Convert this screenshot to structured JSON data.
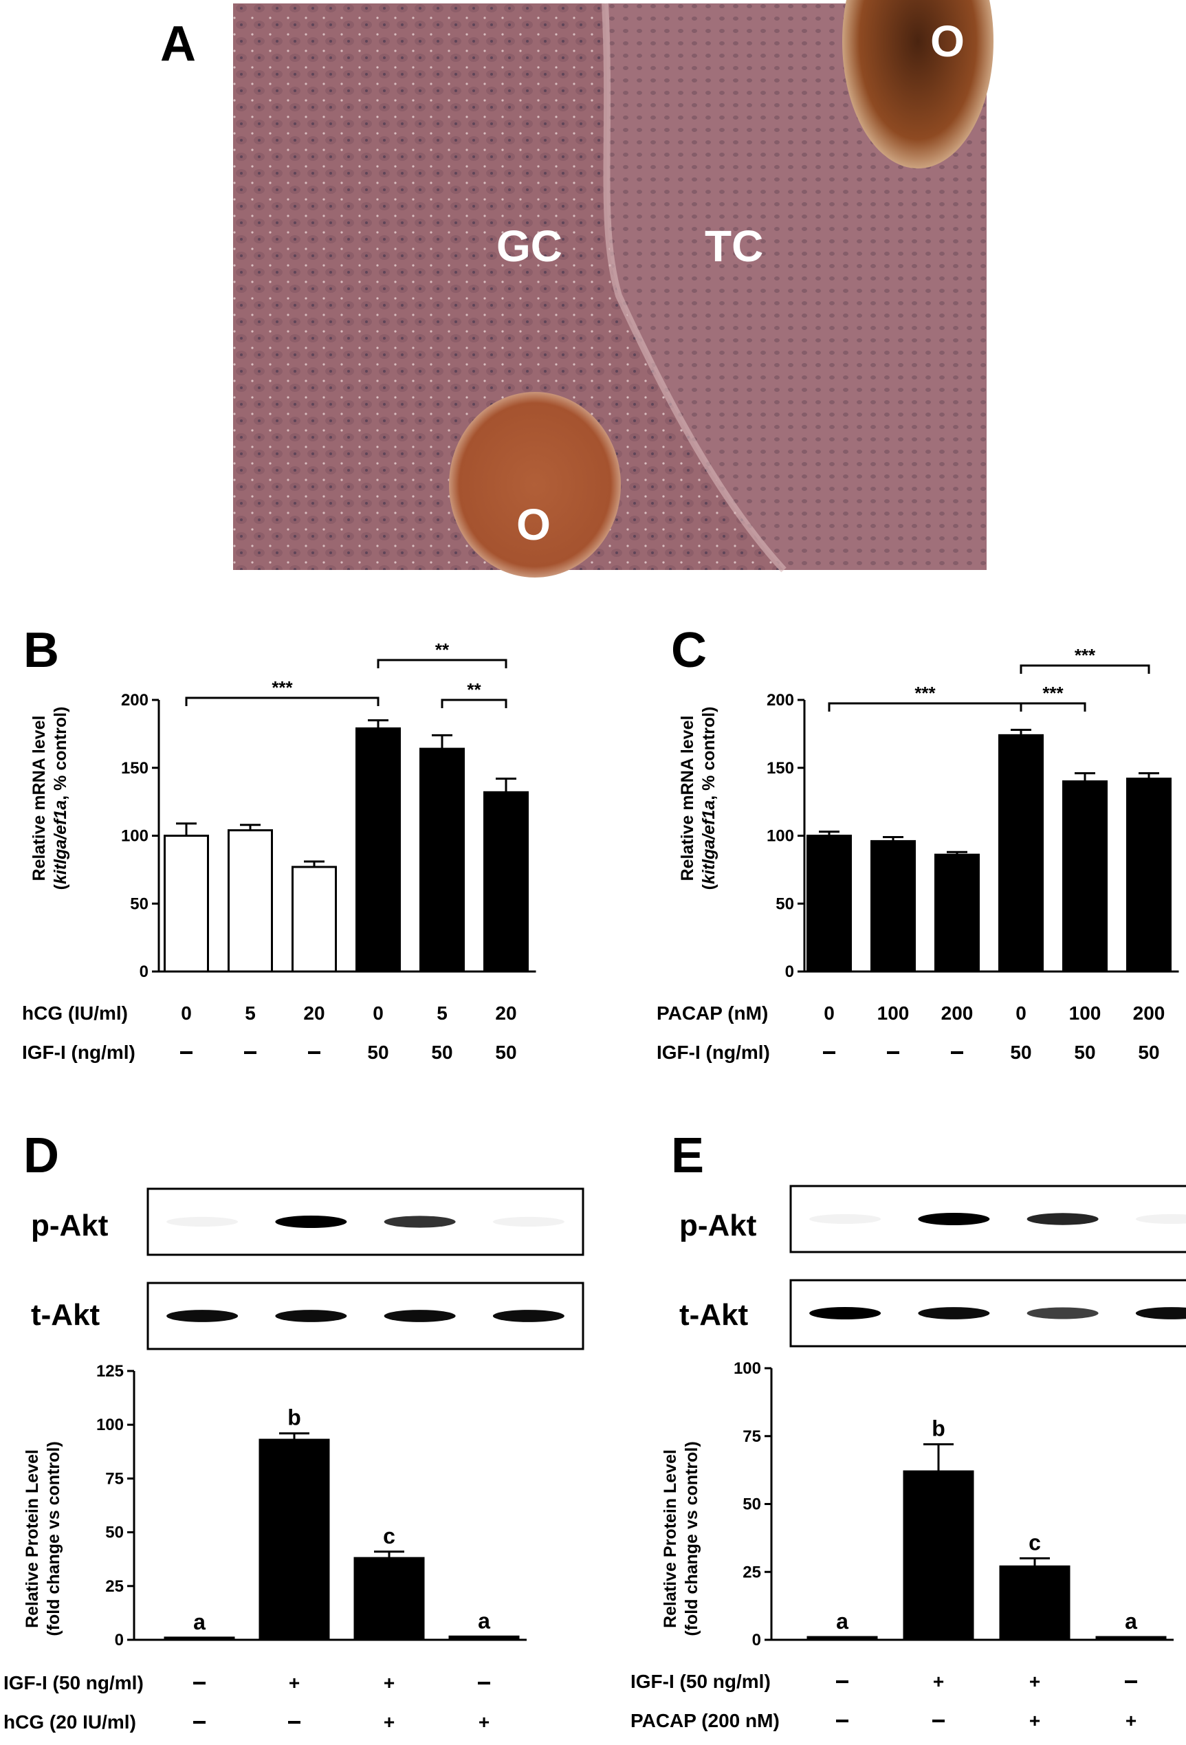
{
  "colors": {
    "black": "#000000",
    "white": "#ffffff",
    "micrograph_bg": "#9e6c74",
    "oocyte": "#a5532f"
  },
  "panel_letters": [
    "A",
    "B",
    "C",
    "D",
    "E"
  ],
  "micrograph": {
    "labels": [
      "GC",
      "TC",
      "O",
      "O"
    ]
  },
  "chart_data": [
    {
      "panel": "B",
      "type": "bar",
      "ylabel_line1": "Relative mRNA level",
      "ylabel_line2_italic": "kitlga/ef1a",
      "ylabel_line2_rest": ", % control)",
      "ylabel_line2_open": "(",
      "ylim": [
        0,
        200
      ],
      "yticks": [
        "0",
        "50",
        "100",
        "150",
        "200"
      ],
      "values": [
        100,
        104,
        77,
        179,
        164,
        132
      ],
      "errors": [
        9,
        4,
        4,
        6,
        10,
        10
      ],
      "fills": [
        "white",
        "white",
        "white",
        "black",
        "black",
        "black"
      ],
      "rows": [
        {
          "label": "hCG (IU/ml)",
          "values": [
            "0",
            "5",
            "20",
            "0",
            "5",
            "20"
          ]
        },
        {
          "label": "IGF-I (ng/ml)",
          "values": [
            "-",
            "-",
            "-",
            "50",
            "50",
            "50"
          ]
        }
      ],
      "brackets": [
        {
          "from": 0,
          "to": 3,
          "label": "***"
        },
        {
          "from": 3,
          "to": 5,
          "label": "**"
        },
        {
          "from": 4,
          "to": 5,
          "label": "**"
        }
      ]
    },
    {
      "panel": "C",
      "type": "bar",
      "ylabel_line1": "Relative mRNA level",
      "ylabel_line2_italic": "kitlga/ef1a",
      "ylabel_line2_rest": ", % control)",
      "ylabel_line2_open": "(",
      "ylim": [
        0,
        200
      ],
      "yticks": [
        "0",
        "50",
        "100",
        "150",
        "200"
      ],
      "values": [
        100,
        96,
        86,
        174,
        140,
        142
      ],
      "errors": [
        3,
        3,
        2,
        4,
        6,
        4
      ],
      "fills": [
        "black",
        "black",
        "black",
        "black",
        "black",
        "black"
      ],
      "rows": [
        {
          "label": "PACAP (nM)",
          "values": [
            "0",
            "100",
            "200",
            "0",
            "100",
            "200"
          ]
        },
        {
          "label": "IGF-I (ng/ml)",
          "values": [
            "-",
            "-",
            "-",
            "50",
            "50",
            "50"
          ]
        }
      ],
      "brackets": [
        {
          "from": 0,
          "to": 3,
          "label": "***"
        },
        {
          "from": 3,
          "to": 4,
          "label": "***"
        },
        {
          "from": 3,
          "to": 5,
          "label": "***"
        }
      ]
    },
    {
      "panel": "D",
      "type": "bar",
      "blot_labels": [
        "p-Akt",
        "t-Akt"
      ],
      "ylabel_line1": "Relative Protein Level",
      "ylabel_line2": "(fold change vs control)",
      "ylim": [
        0,
        125
      ],
      "yticks": [
        "0",
        "25",
        "50",
        "75",
        "100",
        "125"
      ],
      "values": [
        1,
        93,
        38,
        1.5
      ],
      "errors": [
        0,
        3,
        3,
        0
      ],
      "letters": [
        "a",
        "b",
        "c",
        "a"
      ],
      "rows": [
        {
          "label": "IGF-I (50 ng/ml)",
          "values": [
            "-",
            "+",
            "+",
            "-"
          ]
        },
        {
          "label": "hCG (20 IU/ml)",
          "values": [
            "-",
            "-",
            "+",
            "+"
          ]
        }
      ],
      "pakt_intensity": [
        0.04,
        1.0,
        0.8,
        0.04
      ],
      "takt_intensity": [
        0.95,
        0.95,
        0.95,
        0.95
      ]
    },
    {
      "panel": "E",
      "type": "bar",
      "blot_labels": [
        "p-Akt",
        "t-Akt"
      ],
      "ylabel_line1": "Relative Protein Level",
      "ylabel_line2": "(fold change vs control)",
      "ylim": [
        0,
        100
      ],
      "yticks": [
        "0",
        "25",
        "50",
        "75",
        "100"
      ],
      "values": [
        1,
        62,
        27,
        1
      ],
      "errors": [
        0,
        10,
        3,
        0
      ],
      "letters": [
        "a",
        "b",
        "c",
        "a"
      ],
      "rows": [
        {
          "label": "IGF-I (50 ng/ml)",
          "values": [
            "-",
            "+",
            "+",
            "-"
          ]
        },
        {
          "label": "PACAP (200 nM)",
          "values": [
            "-",
            "-",
            "+",
            "+"
          ]
        }
      ],
      "pakt_intensity": [
        0.04,
        1.0,
        0.85,
        0.04
      ],
      "takt_intensity": [
        1.0,
        0.95,
        0.75,
        0.95
      ]
    }
  ]
}
